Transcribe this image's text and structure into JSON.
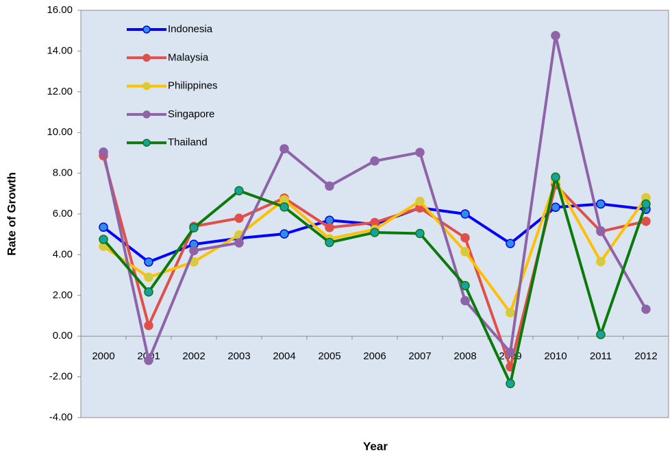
{
  "chart_data": {
    "type": "line",
    "x_label": "Year",
    "y_label": "Rate of Growth",
    "categories": [
      "2000",
      "2001",
      "2002",
      "2003",
      "2004",
      "2005",
      "2006",
      "2007",
      "2008",
      "2009",
      "2010",
      "2011",
      "2012"
    ],
    "series": [
      {
        "name": "Indonesia",
        "color": "#0000ff",
        "marker_color": "#2e8fe0",
        "values": [
          5.35,
          3.64,
          4.51,
          4.81,
          5.02,
          5.69,
          5.49,
          6.3,
          6.0,
          4.55,
          6.33,
          6.49,
          6.23
        ]
      },
      {
        "name": "Malaysia",
        "color": "#e0504a",
        "marker_color": "#e0504a",
        "values": [
          8.86,
          0.52,
          5.39,
          5.79,
          6.78,
          5.33,
          5.58,
          6.3,
          4.83,
          -1.51,
          7.43,
          5.14,
          5.64
        ]
      },
      {
        "name": "Philippines",
        "color": "#ffc000",
        "marker_color": "#c9cf4a",
        "values": [
          4.41,
          2.89,
          3.65,
          4.97,
          6.7,
          4.78,
          5.24,
          6.62,
          4.15,
          1.15,
          7.63,
          3.66,
          6.8
        ]
      },
      {
        "name": "Singapore",
        "color": "#8e63a8",
        "marker_color": "#8e63a8",
        "values": [
          9.04,
          -1.19,
          4.2,
          4.58,
          9.2,
          7.37,
          8.6,
          9.02,
          1.74,
          -0.79,
          14.76,
          5.17,
          1.32
        ]
      },
      {
        "name": "Thailand",
        "color": "#0a7a0a",
        "marker_color": "#1aa0a0",
        "values": [
          4.75,
          2.17,
          5.32,
          7.14,
          6.34,
          4.6,
          5.09,
          5.04,
          2.48,
          -2.33,
          7.81,
          0.08,
          6.49
        ]
      }
    ],
    "ylim": [
      -4,
      16
    ],
    "yticks": [
      {
        "value": -4,
        "label": "-4.00"
      },
      {
        "value": -2,
        "label": "-2.00"
      },
      {
        "value": 0,
        "label": "0.00"
      },
      {
        "value": 2,
        "label": "2.00"
      },
      {
        "value": 4,
        "label": "4.00"
      },
      {
        "value": 6,
        "label": "6.00"
      },
      {
        "value": 8,
        "label": "8.00"
      },
      {
        "value": 10,
        "label": "10.00"
      },
      {
        "value": 12,
        "label": "12.00"
      },
      {
        "value": 14,
        "label": "14.00"
      },
      {
        "value": 16,
        "label": "16.00"
      }
    ],
    "legend": "top-left",
    "grid": false
  }
}
